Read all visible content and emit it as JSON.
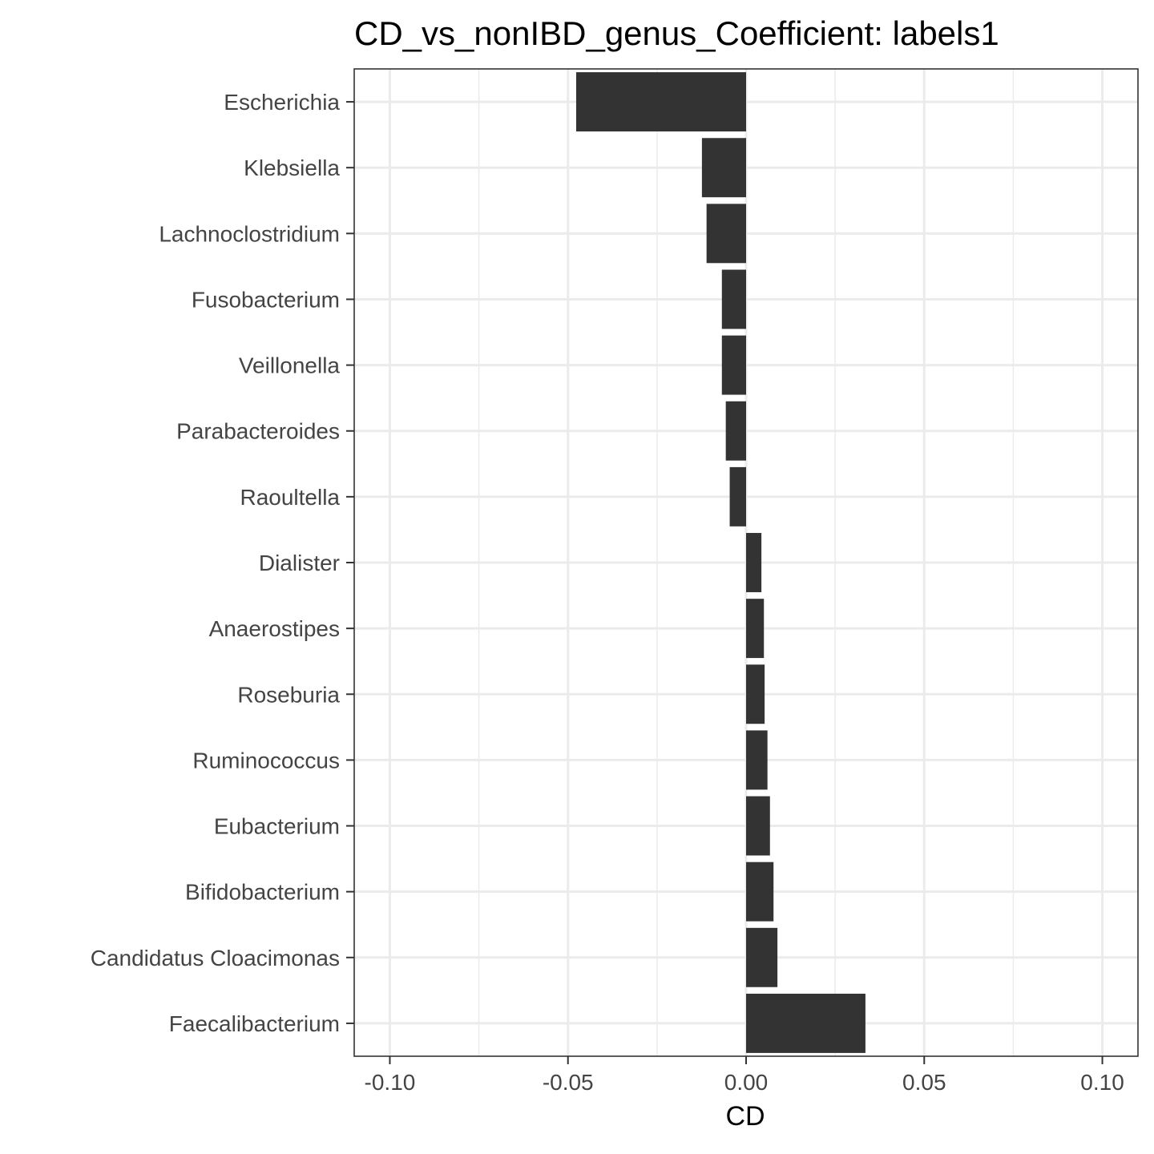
{
  "chart_data": {
    "type": "bar",
    "orientation": "horizontal",
    "title": "CD_vs_nonIBD_genus_Coefficient: labels1",
    "xlabel": "CD",
    "ylabel": "",
    "xlim": [
      -0.11,
      0.11
    ],
    "xticks": [
      -0.1,
      -0.05,
      0.0,
      0.05,
      0.1
    ],
    "xtick_labels": [
      "-0.10",
      "-0.05",
      "0.00",
      "0.05",
      "0.10"
    ],
    "grid": true,
    "bar_color": "#333333",
    "categories": [
      "Escherichia",
      "Klebsiella",
      "Lachnoclostridium",
      "Fusobacterium",
      "Veillonella",
      "Parabacteroides",
      "Raoultella",
      "Dialister",
      "Anaerostipes",
      "Roseburia",
      "Ruminococcus",
      "Eubacterium",
      "Bifidobacterium",
      "Candidatus Cloacimonas",
      "Faecalibacterium"
    ],
    "values": [
      -0.0477,
      -0.0124,
      -0.0111,
      -0.0068,
      -0.0068,
      -0.0057,
      -0.0046,
      0.0043,
      0.005,
      0.0052,
      0.006,
      0.0067,
      0.0077,
      0.0088,
      0.0335
    ]
  }
}
